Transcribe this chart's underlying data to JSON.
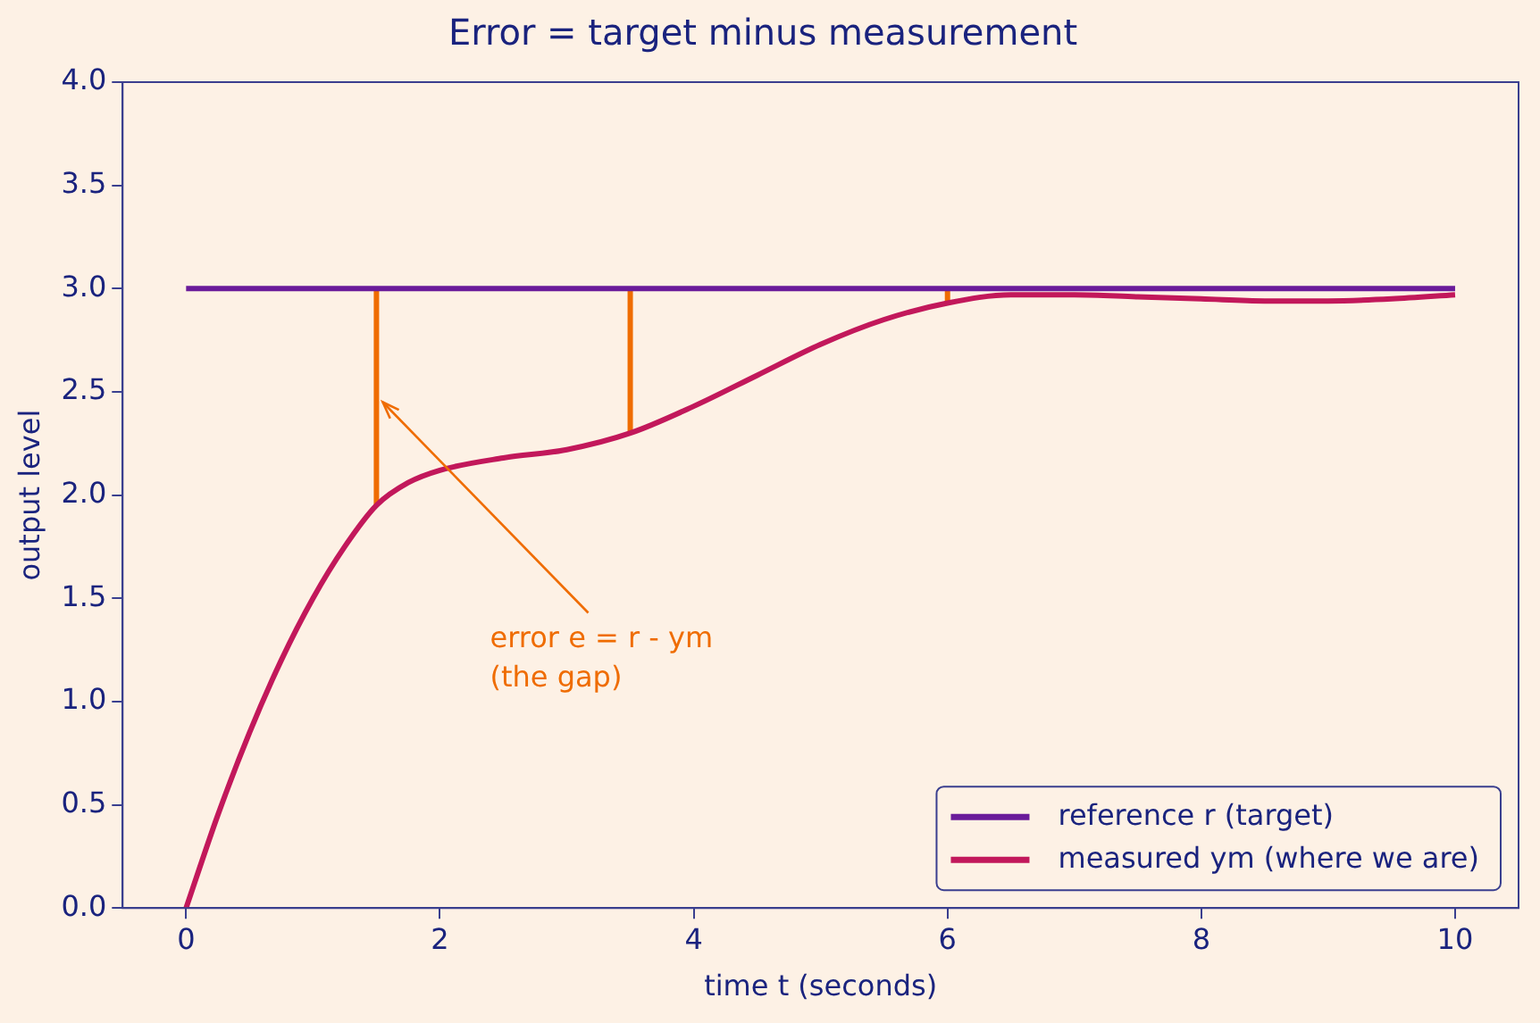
{
  "chart_data": {
    "type": "line",
    "title": "Error = target minus measurement",
    "xlabel": "time t (seconds)",
    "ylabel": "output level",
    "xlim": [
      -0.5,
      10.5
    ],
    "xticks": [
      0,
      2,
      4,
      6,
      8,
      10
    ],
    "ylim": [
      0,
      4
    ],
    "yticks": [
      {
        "value": 0,
        "label": "0.0"
      },
      {
        "value": 0.5,
        "label": "0.5"
      },
      {
        "value": 1,
        "label": "1.0"
      },
      {
        "value": 1.5,
        "label": "1.5"
      },
      {
        "value": 2,
        "label": "2.0"
      },
      {
        "value": 2.5,
        "label": "2.5"
      },
      {
        "value": 3,
        "label": "3.0"
      },
      {
        "value": 3.5,
        "label": "3.5"
      },
      {
        "value": 4,
        "label": "4.0"
      }
    ],
    "grid": false,
    "legend": "bottom right",
    "marker": "none",
    "line_style": "solid",
    "series": [
      {
        "name": "reference r (target)",
        "color": "#6a1b9a",
        "x": [
          0,
          10
        ],
        "values": [
          3,
          3
        ]
      },
      {
        "name": "measured ym (where we are)",
        "color": "#c2185b",
        "x": [
          0,
          0.25,
          0.5,
          0.75,
          1,
          1.25,
          1.5,
          1.75,
          2,
          2.5,
          3,
          3.5,
          4,
          4.5,
          5,
          5.5,
          6,
          6.5,
          7,
          7.5,
          8,
          8.5,
          9,
          9.5,
          10
        ],
        "values": [
          0,
          0.45,
          0.85,
          1.2,
          1.5,
          1.75,
          1.95,
          2.06,
          2.12,
          2.18,
          2.22,
          2.3,
          2.43,
          2.58,
          2.73,
          2.85,
          2.93,
          2.97,
          2.97,
          2.96,
          2.95,
          2.94,
          2.94,
          2.95,
          2.97
        ]
      },
      {
        "color": "#ef6c00",
        "x": [
          1.5,
          1.5
        ],
        "values": [
          1.95,
          3
        ]
      },
      {
        "color": "#ef6c00",
        "x": [
          3.5,
          3.5
        ],
        "values": [
          2.3,
          3
        ]
      },
      {
        "color": "#ef6c00",
        "x": [
          6,
          6
        ],
        "values": [
          2.93,
          3
        ]
      }
    ],
    "annotations": [
      {
        "text": "error e = r - ym\n(the gap)",
        "x": 1.55,
        "y": 2.45
      }
    ]
  }
}
